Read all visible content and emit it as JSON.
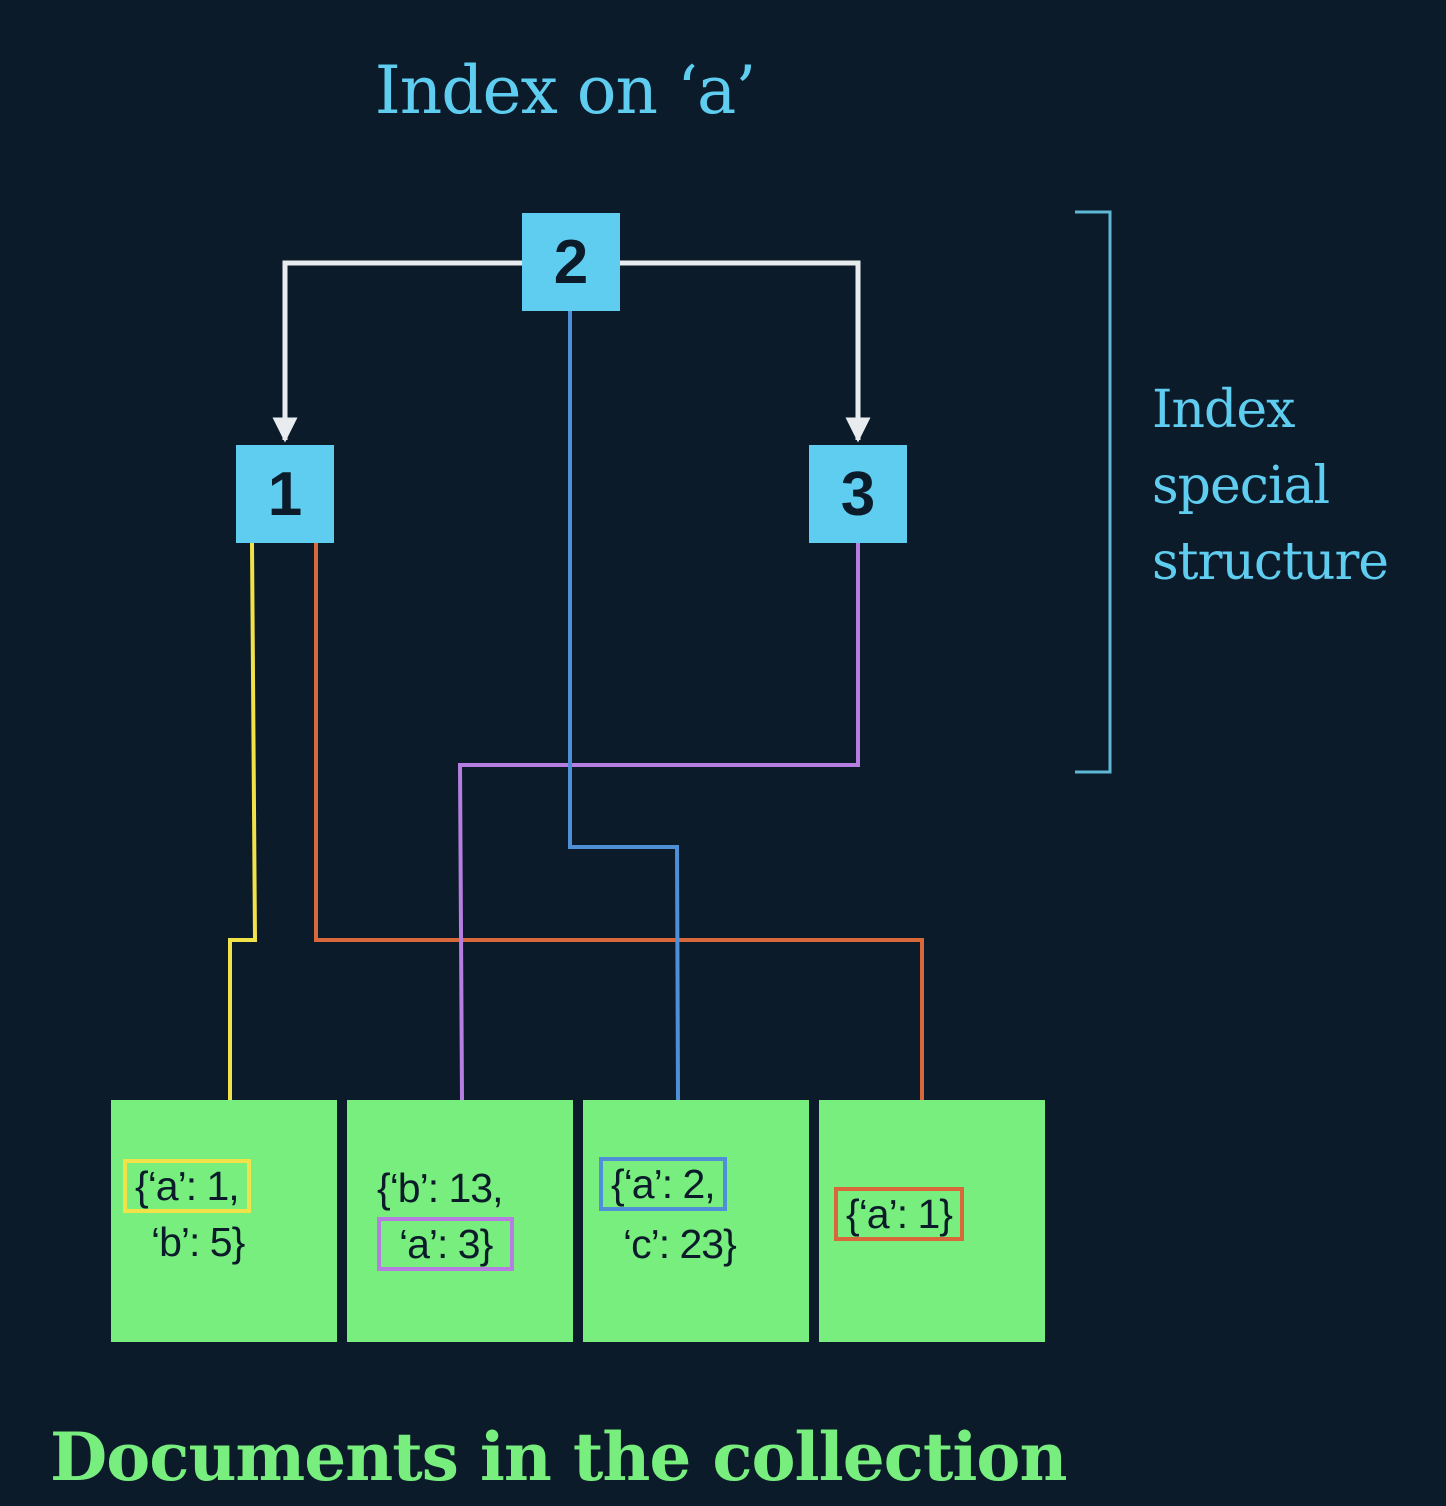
{
  "title": "Index on ‘a’",
  "side_label": {
    "lines": [
      "Index",
      "special",
      "structure"
    ]
  },
  "footer": "Documents in the collection",
  "nodes": {
    "root": "2",
    "left": "1",
    "right": "3"
  },
  "documents": [
    {
      "line1": "{‘a’: 1,",
      "line2": "‘b’: 5}",
      "highlight_color": "#f2e24a"
    },
    {
      "line1": "{‘b’: 13,",
      "line2": "‘a’: 3}",
      "highlight_color": "#b57ee0"
    },
    {
      "line1": "{‘a’: 2,",
      "line2": "‘c’: 23}",
      "highlight_color": "#4f8fd8"
    },
    {
      "line1": "{‘a’: 1}",
      "highlight_color": "#d8683a"
    }
  ],
  "colors": {
    "background": "#0b1b2a",
    "node": "#5fcdf0",
    "document": "#78ee7e",
    "tree_edge": "#e8ecef",
    "link_yellow": "#f2e24a",
    "link_orange": "#d8683a",
    "link_purple": "#b57ee0",
    "link_blue": "#4f8fd8",
    "bracket": "#5fb7d6"
  }
}
